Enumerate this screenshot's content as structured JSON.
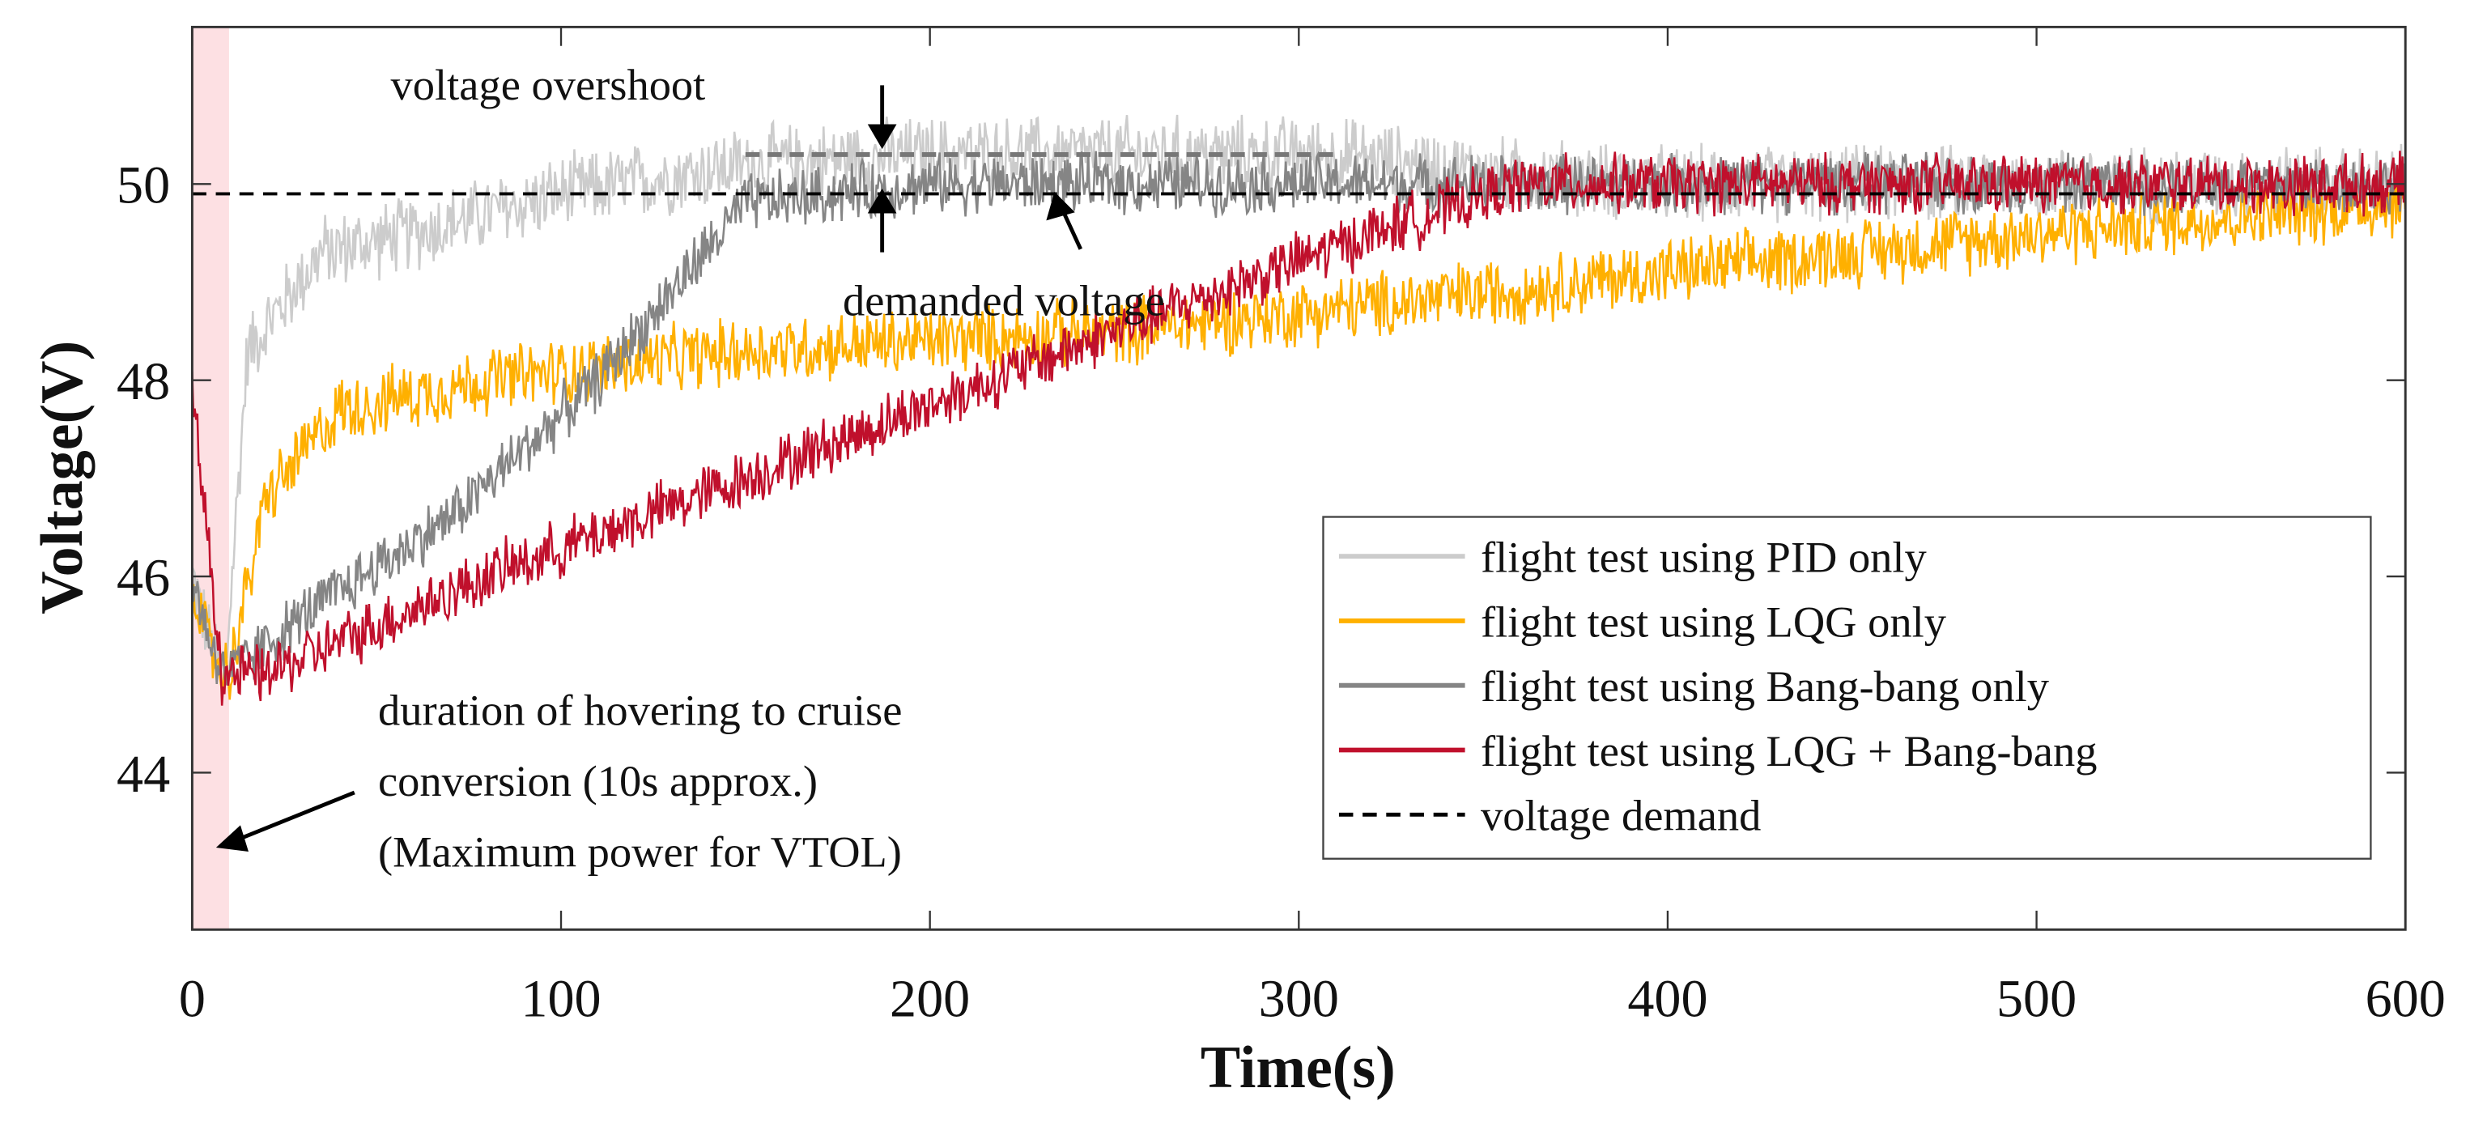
{
  "chart_data": {
    "type": "line",
    "title": "",
    "xlabel": "Time(s)",
    "ylabel": "Voltage(V)",
    "xlim": [
      0,
      600
    ],
    "ylim": [
      42.4,
      51.6
    ],
    "xticks": [
      0,
      100,
      200,
      300,
      400,
      500,
      600
    ],
    "yticks": [
      44,
      46,
      48,
      50
    ],
    "grid": false,
    "legend_position": "bottom-right",
    "shaded_region": {
      "x": [
        0,
        10
      ],
      "color": "#fde0e3"
    },
    "demand_voltage": 49.9,
    "overshoot_level": 50.3,
    "overshoot_range": [
      150,
      310
    ],
    "series": [
      {
        "name": "flight test using PID only",
        "color": "#cccccc",
        "noise": 0.45,
        "x": [
          0,
          5,
          9,
          15,
          25,
          35,
          60,
          100,
          150,
          200,
          310,
          350,
          400,
          600
        ],
        "y": [
          46.0,
          45.3,
          45.0,
          48.3,
          48.8,
          49.3,
          49.5,
          49.9,
          50.2,
          50.3,
          50.3,
          50.1,
          50.0,
          50.0
        ]
      },
      {
        "name": "flight test using LQG only",
        "color": "#ffb000",
        "noise": 0.4,
        "x": [
          0,
          5,
          10,
          20,
          40,
          80,
          150,
          250,
          330,
          400,
          500,
          600
        ],
        "y": [
          46.0,
          45.2,
          45.0,
          46.8,
          47.7,
          48.0,
          48.3,
          48.5,
          48.8,
          49.1,
          49.5,
          49.8
        ]
      },
      {
        "name": "flight test using Bang-bang only",
        "color": "#858585",
        "noise": 0.35,
        "x": [
          0,
          6,
          10,
          30,
          70,
          110,
          150,
          200,
          600
        ],
        "y": [
          46.0,
          45.2,
          45.0,
          45.6,
          46.6,
          48.0,
          49.8,
          50.0,
          50.0
        ]
      },
      {
        "name": "flight test using LQG + Bang-bang",
        "color": "#c0102c",
        "noise": 0.35,
        "x": [
          0,
          4,
          8,
          20,
          80,
          150,
          250,
          320,
          360,
          600
        ],
        "y": [
          47.8,
          46.5,
          45.0,
          45.0,
          46.0,
          47.0,
          48.5,
          49.5,
          50.0,
          50.0
        ]
      },
      {
        "name": "voltage demand",
        "color": "#000000",
        "dashed": true
      }
    ],
    "annotations": [
      {
        "text": "voltage overshoot"
      },
      {
        "text": "demanded voltage"
      },
      {
        "lines": [
          "duration of hovering to cruise",
          "conversion (10s approx.)",
          "(Maximum power for VTOL)"
        ]
      }
    ]
  }
}
